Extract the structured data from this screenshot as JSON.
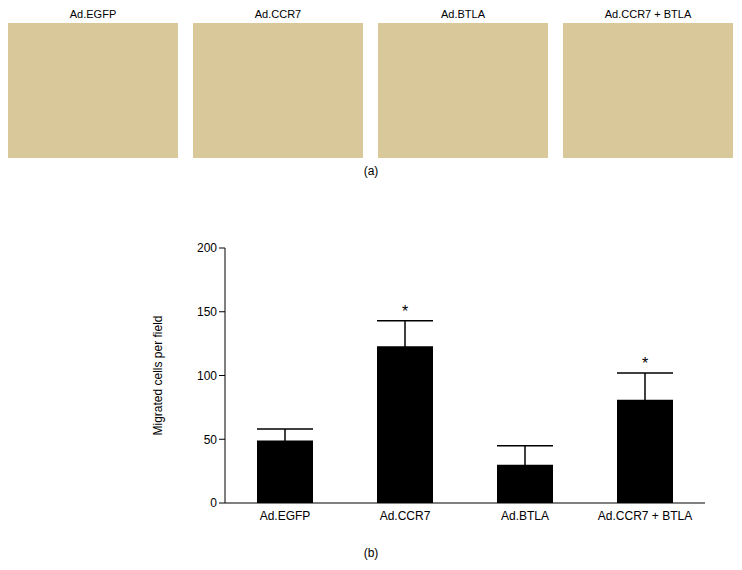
{
  "chart_data": {
    "type": "bar",
    "panel_label": "(b)",
    "y_label": "Migrated cells per field",
    "categories": [
      "Ad.EGFP",
      "Ad.CCR7",
      "Ad.BTLA",
      "Ad.CCR7 + BTLA"
    ],
    "values": [
      49,
      123,
      30,
      81
    ],
    "errors": [
      9,
      20,
      15,
      21
    ],
    "annotations": [
      {
        "category": "Ad.CCR7",
        "text": "*"
      },
      {
        "category": "Ad.CCR7 + BTLA",
        "text": "*"
      }
    ],
    "color": "#000000",
    "ylim": [
      0,
      200
    ],
    "yticks": [
      0,
      50,
      100,
      150,
      200
    ],
    "grid": false
  },
  "image_panel": {
    "panel_label": "(a)",
    "titles": [
      "Ad.EGFP",
      "Ad.CCR7",
      "Ad.BTLA",
      "Ad.CCR7 + BTLA"
    ]
  }
}
